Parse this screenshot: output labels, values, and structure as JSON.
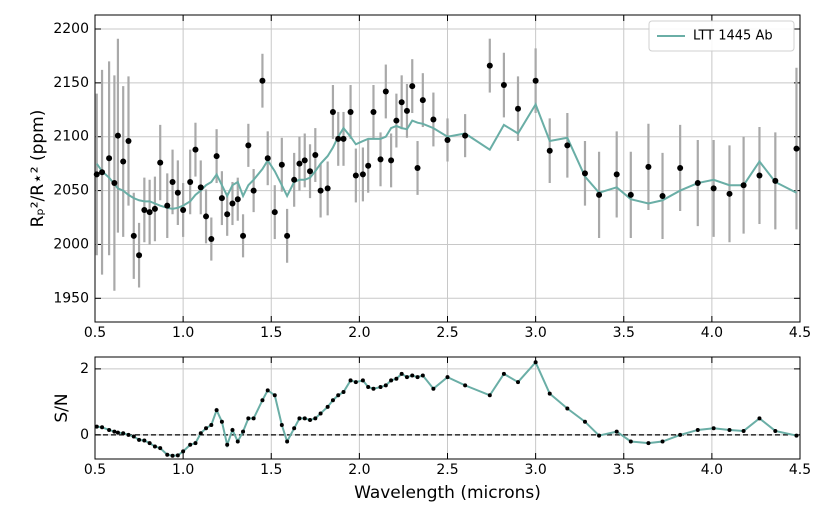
{
  "chart_data": [
    {
      "type": "scatter",
      "ylabel": "Rₚ²/R⋆² (ppm)",
      "x": [
        0.51,
        0.54,
        0.58,
        0.61,
        0.63,
        0.66,
        0.69,
        0.72,
        0.75,
        0.78,
        0.81,
        0.84,
        0.87,
        0.91,
        0.94,
        0.97,
        1.0,
        1.04,
        1.07,
        1.1,
        1.13,
        1.16,
        1.19,
        1.22,
        1.25,
        1.28,
        1.31,
        1.34,
        1.37,
        1.4,
        1.45,
        1.48,
        1.52,
        1.56,
        1.59,
        1.63,
        1.66,
        1.69,
        1.72,
        1.75,
        1.78,
        1.82,
        1.85,
        1.88,
        1.91,
        1.95,
        1.98,
        2.02,
        2.05,
        2.08,
        2.12,
        2.15,
        2.18,
        2.21,
        2.24,
        2.27,
        2.3,
        2.33,
        2.36,
        2.42,
        2.5,
        2.6,
        2.74,
        2.82,
        2.9,
        3.0,
        3.08,
        3.18,
        3.28,
        3.36,
        3.46,
        3.54,
        3.64,
        3.72,
        3.82,
        3.92,
        4.01,
        4.1,
        4.18,
        4.27,
        4.36,
        4.48
      ],
      "observed": {
        "color": "#000000",
        "error_color": "#a9a9a9",
        "values": [
          2065,
          2067,
          2080,
          2057,
          2101,
          2077,
          2096,
          2008,
          1990,
          2032,
          2030,
          2033,
          2076,
          2036,
          2058,
          2048,
          2032,
          2058,
          2088,
          2053,
          2026,
          2005,
          2082,
          2043,
          2028,
          2038,
          2042,
          2008,
          2092,
          2050,
          2152,
          2080,
          2030,
          2074,
          2008,
          2060,
          2075,
          2078,
          2068,
          2083,
          2050,
          2052,
          2123,
          2098,
          2098,
          2123,
          2064,
          2065,
          2073,
          2123,
          2079,
          2142,
          2078,
          2115,
          2132,
          2124,
          2147,
          2071,
          2134,
          2116,
          2097,
          2101,
          2166,
          2148,
          2126,
          2152,
          2087,
          2092,
          2066,
          2046,
          2065,
          2046,
          2072,
          2045,
          2071,
          2057,
          2052,
          2047,
          2055,
          2064,
          2059,
          2089
        ],
        "errors": [
          75,
          95,
          90,
          100,
          90,
          70,
          60,
          40,
          30,
          30,
          30,
          30,
          35,
          30,
          30,
          30,
          25,
          30,
          25,
          25,
          25,
          20,
          25,
          25,
          20,
          20,
          20,
          20,
          20,
          20,
          25,
          25,
          25,
          25,
          25,
          25,
          25,
          25,
          25,
          25,
          25,
          25,
          25,
          25,
          25,
          25,
          25,
          25,
          25,
          25,
          25,
          25,
          25,
          25,
          25,
          25,
          25,
          25,
          25,
          25,
          20,
          20,
          25,
          30,
          30,
          30,
          30,
          30,
          30,
          40,
          40,
          40,
          40,
          40,
          40,
          40,
          45,
          45,
          45,
          45,
          45,
          75
        ]
      },
      "series": [
        {
          "name": "LTT 1445 Ab",
          "color": "#6aaea6",
          "values": [
            2075,
            2068,
            2062,
            2056,
            2052,
            2050,
            2046,
            2043,
            2041,
            2040,
            2040,
            2038,
            2036,
            2034,
            2033,
            2034,
            2036,
            2040,
            2046,
            2050,
            2055,
            2058,
            2065,
            2055,
            2045,
            2055,
            2058,
            2045,
            2055,
            2060,
            2070,
            2078,
            2068,
            2055,
            2045,
            2058,
            2060,
            2060,
            2062,
            2068,
            2075,
            2082,
            2090,
            2100,
            2108,
            2100,
            2093,
            2096,
            2098,
            2098,
            2098,
            2100,
            2108,
            2110,
            2108,
            2107,
            2115,
            2113,
            2112,
            2108,
            2100,
            2103,
            2088,
            2111,
            2103,
            2130,
            2096,
            2099,
            2063,
            2048,
            2053,
            2042,
            2038,
            2041,
            2050,
            2057,
            2060,
            2055,
            2055,
            2077,
            2058,
            2048
          ]
        }
      ],
      "xlim": [
        0.5,
        4.5
      ],
      "xticks": [
        0.5,
        {
          "value": 1,
          "label": "1.0"
        },
        1.5,
        {
          "value": 2,
          "label": "2.0"
        },
        2.5,
        {
          "value": 3,
          "label": "3.0"
        },
        3.5,
        {
          "value": 4,
          "label": "4.0"
        },
        4.5
      ],
      "ylim": [
        1928,
        2213
      ],
      "yticks": [
        1950,
        2000,
        2050,
        2100,
        2150,
        2200
      ],
      "grid": true,
      "legend": "upper right"
    },
    {
      "type": "line",
      "ylabel": "S/N",
      "xlabel": "Wavelength (microns)",
      "x": [
        0.51,
        0.54,
        0.58,
        0.61,
        0.63,
        0.66,
        0.69,
        0.72,
        0.75,
        0.78,
        0.81,
        0.84,
        0.87,
        0.91,
        0.94,
        0.97,
        1.0,
        1.04,
        1.07,
        1.1,
        1.13,
        1.16,
        1.19,
        1.22,
        1.25,
        1.28,
        1.31,
        1.34,
        1.37,
        1.4,
        1.45,
        1.48,
        1.52,
        1.56,
        1.59,
        1.63,
        1.66,
        1.69,
        1.72,
        1.75,
        1.78,
        1.82,
        1.85,
        1.88,
        1.91,
        1.95,
        1.98,
        2.02,
        2.05,
        2.08,
        2.12,
        2.15,
        2.18,
        2.21,
        2.24,
        2.27,
        2.3,
        2.33,
        2.36,
        2.42,
        2.5,
        2.6,
        2.74,
        2.82,
        2.9,
        3.0,
        3.08,
        3.18,
        3.28,
        3.36,
        3.46,
        3.54,
        3.64,
        3.72,
        3.82,
        3.92,
        4.01,
        4.1,
        4.18,
        4.27,
        4.36,
        4.48
      ],
      "series": [
        {
          "color": "#6aaea6",
          "marker_color": "#000000",
          "values": [
            0.25,
            0.23,
            0.15,
            0.1,
            0.07,
            0.05,
            0,
            -0.05,
            -0.15,
            -0.17,
            -0.25,
            -0.35,
            -0.4,
            -0.6,
            -0.63,
            -0.62,
            -0.5,
            -0.3,
            -0.25,
            0.05,
            0.2,
            0.3,
            0.75,
            0.4,
            -0.3,
            0.15,
            -0.2,
            0.1,
            0.5,
            0.5,
            1.05,
            1.35,
            1.2,
            0.3,
            -0.2,
            0.2,
            0.5,
            0.5,
            0.45,
            0.5,
            0.65,
            0.85,
            1.05,
            1.2,
            1.3,
            1.65,
            1.6,
            1.65,
            1.45,
            1.4,
            1.45,
            1.5,
            1.65,
            1.7,
            1.85,
            1.75,
            1.8,
            1.75,
            1.8,
            1.4,
            1.75,
            1.5,
            1.2,
            1.85,
            1.6,
            2.2,
            1.25,
            0.8,
            0.4,
            -0.02,
            0.1,
            -0.2,
            -0.25,
            -0.2,
            0,
            0.15,
            0.2,
            0.15,
            0.12,
            0.5,
            0.12,
            -0.02
          ]
        }
      ],
      "reference_line": 0,
      "xlim": [
        0.5,
        4.5
      ],
      "xticks": [
        0.5,
        {
          "value": 1,
          "label": "1.0"
        },
        1.5,
        {
          "value": 2,
          "label": "2.0"
        },
        2.5,
        {
          "value": 3,
          "label": "3.0"
        },
        3.5,
        {
          "value": 4,
          "label": "4.0"
        },
        4.5
      ],
      "ylim": [
        -0.73,
        2.36
      ],
      "yticks": [
        0,
        2
      ],
      "grid": true
    }
  ]
}
